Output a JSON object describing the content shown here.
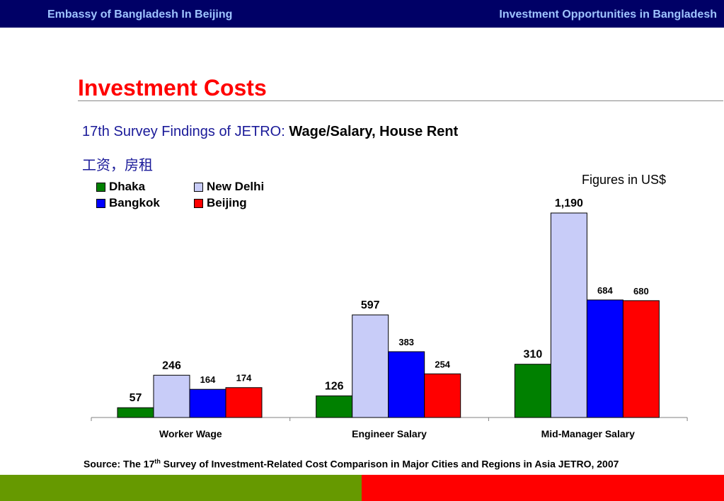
{
  "header": {
    "left_text": "Embassy of Bangladesh In Beijing",
    "right_text": "Investment Opportunities in Bangladesh"
  },
  "slide": {
    "title": "Investment Costs",
    "subtitle_prefix": "17th Survey Findings of JETRO: ",
    "subtitle_bold": "Wage/Salary, House Rent",
    "subtitle_cn": "工资，房租",
    "units_note": "Figures in US$",
    "source_prefix": "Source: The 17",
    "source_sup": "th",
    "source_suffix": " Survey of Investment-Related Cost Comparison in Major Cities and Regions in Asia JETRO, 2007"
  },
  "colors": {
    "header_bg": "#000066",
    "header_text": "#9fc4ff",
    "title": "#ff0000",
    "subtitle": "#1a1a99",
    "footer_green": "#669900",
    "footer_red": "#ff0000"
  },
  "chart_data": {
    "type": "bar",
    "categories": [
      "Worker Wage",
      "Engineer Salary",
      "Mid-Manager Salary"
    ],
    "series": [
      {
        "name": "Dhaka",
        "color": "#008000",
        "values": [
          57,
          126,
          310
        ]
      },
      {
        "name": "New Delhi",
        "color": "#c8ccf8",
        "values": [
          246,
          597,
          1190
        ]
      },
      {
        "name": "Bangkok",
        "color": "#0000ff",
        "values": [
          164,
          383,
          684
        ]
      },
      {
        "name": "Beijing",
        "color": "#ff0000",
        "values": [
          174,
          254,
          680
        ]
      }
    ],
    "value_labels": [
      [
        "57",
        "126",
        "310"
      ],
      [
        "246",
        "597",
        "1,190"
      ],
      [
        "164",
        "383",
        "684"
      ],
      [
        "174",
        "254",
        "680"
      ]
    ],
    "ylim": [
      0,
      1190
    ],
    "grid": false,
    "legend_position": "top-left"
  }
}
